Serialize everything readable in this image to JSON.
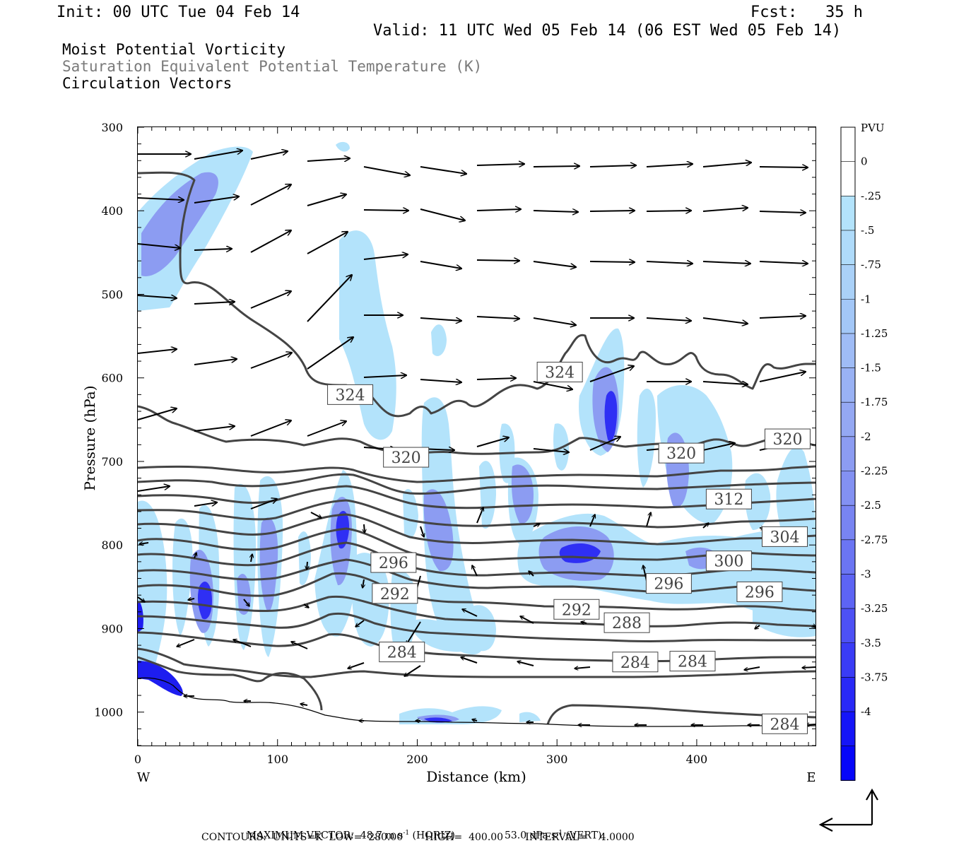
{
  "header": {
    "init": "Init: 00 UTC Tue 04 Feb 14",
    "fcst": "Fcst:   35 h",
    "valid": "Valid: 11 UTC Wed 05 Feb 14 (06 EST Wed 05 Feb 14)",
    "field1": "Moist Potential Vorticity",
    "field2": "Saturation Equivalent Potential Temperature (K)",
    "field3": "Circulation Vectors"
  },
  "axes": {
    "ylabel": "Pressure (hPa)",
    "xlabel": "Distance (km)",
    "west": "W",
    "east": "E",
    "colorbar_unit": "PVU"
  },
  "footer": {
    "line1a": "MAXIMUM VECTOR:  48.7 m s",
    "line1a_sup": "-1",
    "line1b": " (HORIZ)",
    "line1c": "53.0 dPa s",
    "line1c_sup": "-1",
    "line1d": " (VERT)",
    "line2": "CONTOURS:  UNITS=K  LOW=  280.00       HIGH=  400.00       INTERVAL=    4.0000"
  },
  "colors": {
    "contour": "#444444",
    "pv_light": "#b3e3fb",
    "pv_mid": "#8c9cf2",
    "pv_dark": "#1d1df0"
  },
  "chart_data": {
    "type": "cross-section",
    "x_range": [
      0,
      485
    ],
    "y_range": [
      300,
      1040
    ],
    "y_scale": "linear (inverted)",
    "x_ticks": [
      "0",
      "100",
      "200",
      "300",
      "400"
    ],
    "x_tick_values": [
      0,
      100,
      200,
      300,
      400
    ],
    "y_ticks": [
      "300",
      "400",
      "500",
      "600",
      "700",
      "800",
      "900",
      "1000"
    ],
    "y_tick_values": [
      300,
      400,
      500,
      600,
      700,
      800,
      900,
      1000
    ],
    "colorbar": {
      "labels": [
        "0",
        "-.25",
        "-.5",
        "-.75",
        "-1",
        "-1.25",
        "-1.5",
        "-1.75",
        "-2",
        "-2.25",
        "-2.5",
        "-2.75",
        "-3",
        "-3.25",
        "-3.5",
        "-3.75",
        "-4"
      ],
      "colors": [
        "#ffffff",
        "#ffffff",
        "#b3e3fb",
        "#afdbfa",
        "#aad1f8",
        "#a3c7f7",
        "#9fbcf6",
        "#99b2f4",
        "#94a8f3",
        "#8c9cf2",
        "#8391f2",
        "#7884f2",
        "#6b75f3",
        "#5d64f4",
        "#4d51f5",
        "#3a3cf6",
        "#2929f7",
        "#1515f8",
        "#0606f9"
      ]
    },
    "contour_labels": [
      {
        "text": "324",
        "x": 152,
        "p": 620
      },
      {
        "text": "324",
        "x": 302,
        "p": 593
      },
      {
        "text": "320",
        "x": 192,
        "p": 695
      },
      {
        "text": "320",
        "x": 389,
        "p": 690
      },
      {
        "text": "320",
        "x": 465,
        "p": 673
      },
      {
        "text": "312",
        "x": 423,
        "p": 745
      },
      {
        "text": "304",
        "x": 463,
        "p": 790
      },
      {
        "text": "300",
        "x": 423,
        "p": 819
      },
      {
        "text": "296",
        "x": 183,
        "p": 821
      },
      {
        "text": "296",
        "x": 380,
        "p": 846
      },
      {
        "text": "296",
        "x": 445,
        "p": 856
      },
      {
        "text": "292",
        "x": 184,
        "p": 858
      },
      {
        "text": "292",
        "x": 314,
        "p": 877
      },
      {
        "text": "288",
        "x": 350,
        "p": 893
      },
      {
        "text": "284",
        "x": 189,
        "p": 928
      },
      {
        "text": "284",
        "x": 356,
        "p": 940
      },
      {
        "text": "284",
        "x": 397,
        "p": 939
      },
      {
        "text": "284",
        "x": 463,
        "p": 1014
      }
    ]
  }
}
